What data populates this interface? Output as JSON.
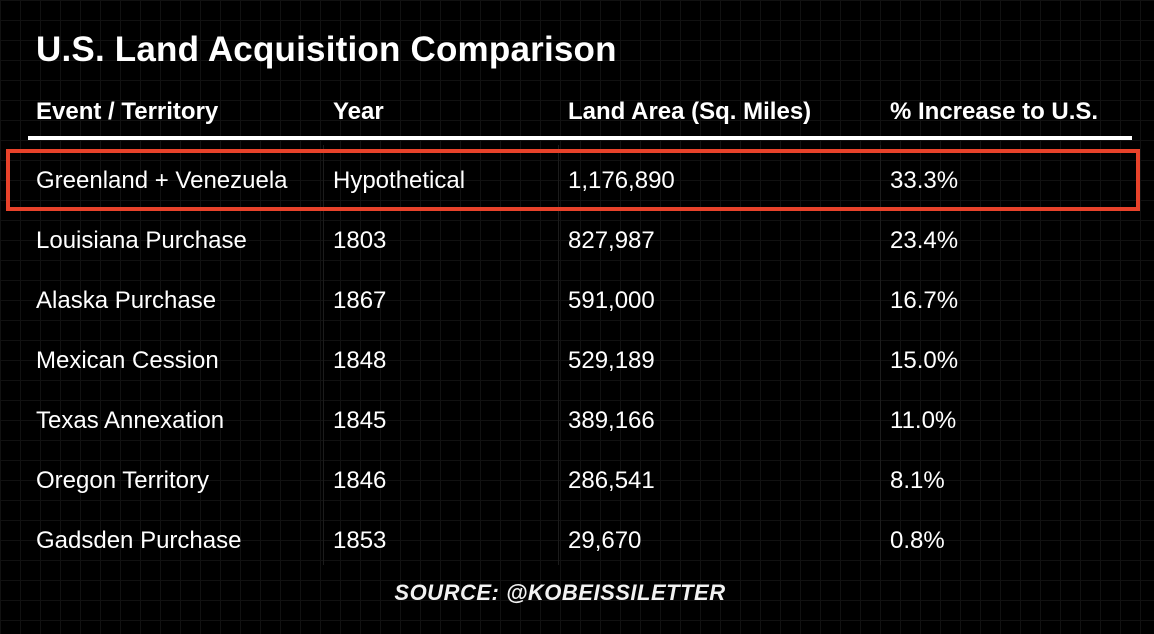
{
  "title": "U.S. Land Acquisition Comparison",
  "source": "SOURCE: @KOBEISSILETTER",
  "highlight_color": "#e8422a",
  "chart_data": {
    "type": "table",
    "title": "U.S. Land Acquisition Comparison",
    "columns": [
      "Event / Territory",
      "Year",
      "Land Area (Sq. Miles)",
      "% Increase to U.S."
    ],
    "rows": [
      [
        "Greenland + Venezuela",
        "Hypothetical",
        "1,176,890",
        "33.3%"
      ],
      [
        "Louisiana Purchase",
        "1803",
        "827,987",
        "23.4%"
      ],
      [
        "Alaska Purchase",
        "1867",
        "591,000",
        "16.7%"
      ],
      [
        "Mexican Cession",
        "1848",
        "529,189",
        "15.0%"
      ],
      [
        "Texas Annexation",
        "1845",
        "389,166",
        "11.0%"
      ],
      [
        "Oregon Territory",
        "1846",
        "286,541",
        "8.1%"
      ],
      [
        "Gadsden Purchase",
        "1853",
        "29,670",
        "0.8%"
      ]
    ],
    "highlighted_row": 0
  }
}
